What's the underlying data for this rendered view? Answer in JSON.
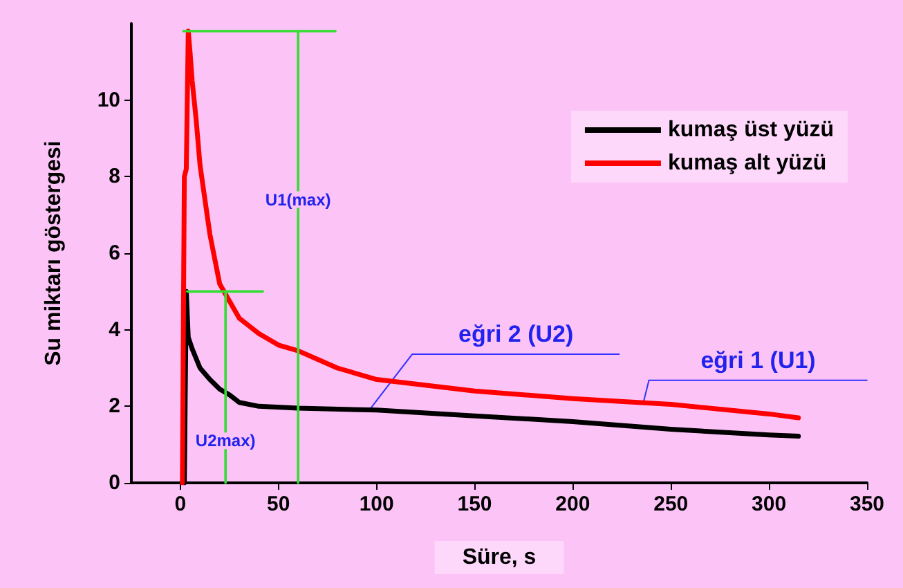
{
  "chart_data": {
    "type": "line",
    "xlabel": "Süre, s",
    "ylabel": "Su miktarı göstergesi",
    "xlim": [
      -25,
      350
    ],
    "xticks": [
      0,
      50,
      100,
      150,
      200,
      250,
      300,
      350
    ],
    "ylim": [
      0,
      12
    ],
    "yticks": [
      0,
      2,
      4,
      6,
      8,
      10
    ],
    "grid": false,
    "legend": "top right",
    "marker": "none",
    "line_style": "solid",
    "series": [
      {
        "name": "kumaş üst yüzü",
        "color": "#000000",
        "x": [
          2,
          3,
          4,
          6,
          10,
          15,
          20,
          25,
          30,
          40,
          60,
          100,
          150,
          200,
          250,
          300,
          315
        ],
        "values": [
          0,
          5,
          3.8,
          3.5,
          3.0,
          2.7,
          2.45,
          2.3,
          2.1,
          2.0,
          1.95,
          1.9,
          1.75,
          1.6,
          1.4,
          1.25,
          1.22
        ]
      },
      {
        "name": "kumaş alt yüzü",
        "color": "#ff0000",
        "x": [
          1,
          2,
          3,
          4,
          5,
          6,
          8,
          10,
          15,
          20,
          25,
          30,
          40,
          50,
          60,
          80,
          100,
          150,
          200,
          250,
          300,
          315
        ],
        "values": [
          0,
          8,
          8.2,
          11.8,
          11.2,
          10.5,
          9.5,
          8.3,
          6.5,
          5.2,
          4.75,
          4.3,
          3.9,
          3.6,
          3.45,
          3.0,
          2.7,
          2.4,
          2.2,
          2.05,
          1.8,
          1.7
        ]
      },
      {
        "color": "#33dd33",
        "x": [
          60,
          60
        ],
        "values": [
          0,
          11.8
        ]
      },
      {
        "color": "#33dd33",
        "x": [
          1.5,
          79
        ],
        "values": [
          11.8,
          11.8
        ]
      },
      {
        "color": "#33dd33",
        "x": [
          23,
          23
        ],
        "values": [
          0,
          5
        ]
      },
      {
        "color": "#33dd33",
        "x": [
          3.5,
          42
        ],
        "values": [
          5,
          5
        ]
      }
    ],
    "annotations": [
      {
        "text": "U1(max)",
        "x": 60,
        "y": 7.4
      },
      {
        "text": "U2max)",
        "x": 23,
        "y": 1.1
      },
      {
        "text": "eğri 2 (U2)",
        "x": 97,
        "y": 1.95
      },
      {
        "text": "eğri 1 (U1)",
        "x": 236,
        "y": 2.1
      }
    ]
  }
}
